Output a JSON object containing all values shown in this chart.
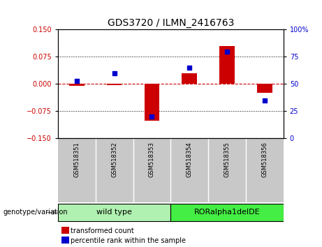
{
  "title": "GDS3720 / ILMN_2416763",
  "samples": [
    "GSM518351",
    "GSM518352",
    "GSM518353",
    "GSM518354",
    "GSM518355",
    "GSM518356"
  ],
  "red_values": [
    -0.005,
    -0.004,
    -0.102,
    0.03,
    0.105,
    -0.025
  ],
  "blue_values_pct": [
    53,
    60,
    20,
    65,
    80,
    35
  ],
  "ylim_left": [
    -0.15,
    0.15
  ],
  "ylim_right": [
    0,
    100
  ],
  "yticks_left": [
    -0.15,
    -0.075,
    0,
    0.075,
    0.15
  ],
  "yticks_right": [
    0,
    25,
    50,
    75,
    100
  ],
  "group_label": "genotype/variation",
  "wt_label": "wild type",
  "mut_label": "RORalpha1delDE",
  "legend_red": "transformed count",
  "legend_blue": "percentile rank within the sample",
  "red_color": "#cc0000",
  "blue_color": "#0000cc",
  "bg_xlabel": "#c8c8c8",
  "bg_group_wt": "#b0f0b0",
  "bg_group_mut": "#44ee44"
}
